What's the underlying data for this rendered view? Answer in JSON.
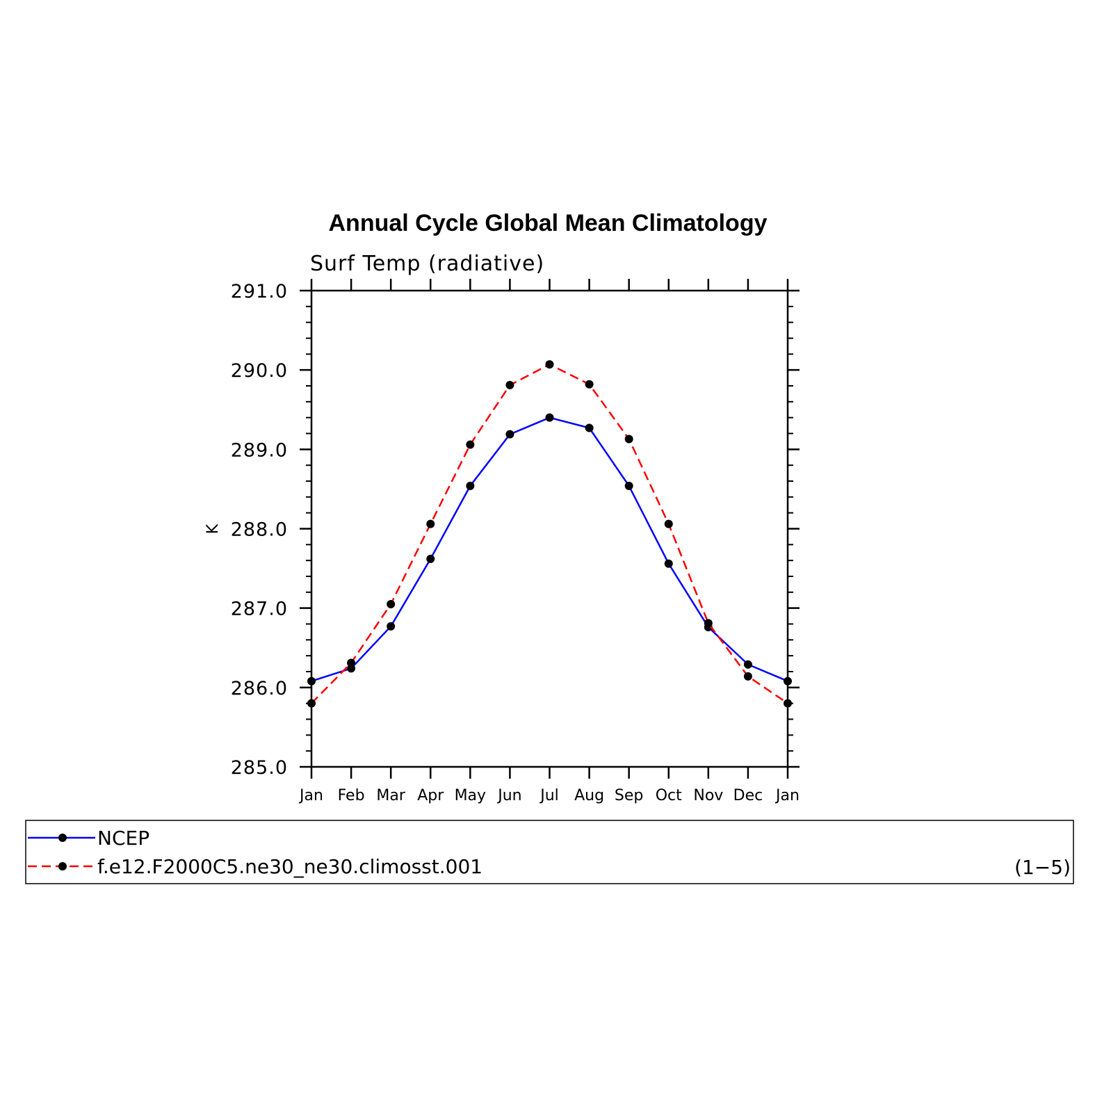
{
  "chart_data": {
    "type": "line",
    "title": "Annual Cycle Global Mean Climatology",
    "subtitle": "Surf Temp (radiative)",
    "xlabel": "",
    "ylabel": "K",
    "categories": [
      "Jan",
      "Feb",
      "Mar",
      "Apr",
      "May",
      "Jun",
      "Jul",
      "Aug",
      "Sep",
      "Oct",
      "Nov",
      "Dec",
      "Jan"
    ],
    "ylim": [
      285.0,
      291.0
    ],
    "yticks": [
      "285.0",
      "286.0",
      "287.0",
      "288.0",
      "289.0",
      "290.0",
      "291.0"
    ],
    "y_minor_step": 0.2,
    "grid": false,
    "series": [
      {
        "name": "NCEP",
        "color": "#0000ff",
        "dash": "solid",
        "values": [
          286.08,
          286.24,
          286.77,
          287.62,
          288.54,
          289.19,
          289.4,
          289.27,
          288.54,
          287.56,
          286.76,
          286.29,
          286.08
        ]
      },
      {
        "name": "f.e12.F2000C5.ne30_ne30.climosst.001",
        "color": "#ff0000",
        "dash": "dashed",
        "values": [
          285.8,
          286.31,
          287.05,
          288.06,
          289.06,
          289.81,
          290.07,
          289.82,
          289.13,
          288.06,
          286.81,
          286.14,
          285.8
        ]
      }
    ],
    "marker_color": "#000000",
    "legend_note": "(1−5)",
    "legend_position": "bottom"
  }
}
